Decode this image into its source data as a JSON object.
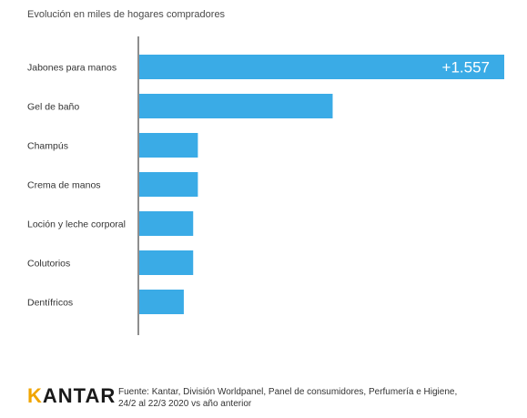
{
  "chart_data": {
    "type": "bar",
    "orientation": "horizontal",
    "title": "Evolución en miles de hogares compradores",
    "categories": [
      "Jabones para manos",
      "Gel de baño",
      "Champús",
      "Crema de manos",
      "Loción y leche corporal",
      "Colutorios",
      "Dentífricos"
    ],
    "values": [
      1557,
      825,
      250,
      250,
      230,
      230,
      190
    ],
    "data_labels": [
      "+1.557",
      "",
      "",
      "",
      "",
      "",
      ""
    ],
    "xlim": [
      0,
      1557
    ],
    "grid": false,
    "bar_color": "#3aabe6"
  },
  "footer": {
    "logo_first_letter": "K",
    "logo_rest": "ANTAR",
    "source_line1": "Fuente: Kantar, División Worldpanel, Panel de consumidores, Perfumería e Higiene,",
    "source_line2": "24/2 al 22/3 2020 vs año anterior"
  }
}
